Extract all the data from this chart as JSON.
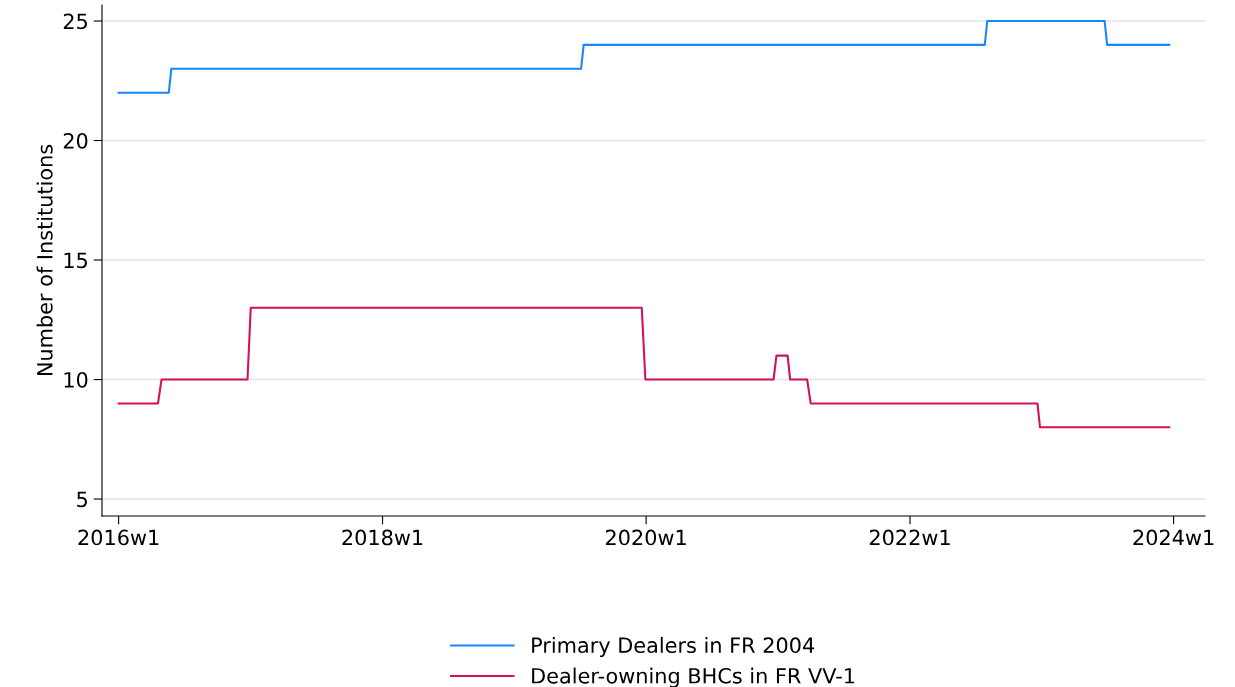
{
  "chart_data": {
    "type": "line",
    "ylabel": "Number of Institutions",
    "xlim": [
      "2015-11-16",
      "2024-03-28"
    ],
    "xticks": [
      {
        "value": "2016-01-01",
        "label": "2016w1"
      },
      {
        "value": "2018-01-01",
        "label": "2018w1"
      },
      {
        "value": "2020-01-01",
        "label": "2020w1"
      },
      {
        "value": "2022-01-01",
        "label": "2022w1"
      },
      {
        "value": "2024-01-01",
        "label": "2024w1"
      }
    ],
    "ylim": [
      4.29,
      25.67
    ],
    "yticks": [
      5,
      10,
      15,
      20,
      25
    ],
    "grid": "y",
    "legend": "bottom",
    "marker": "none",
    "line_style": "solid",
    "series": [
      {
        "name": "Primary Dealers in FR 2004",
        "color": "#1a85ff",
        "x": [
          "2016-01-01",
          "2016-05-19",
          "2016-05-26",
          "2019-07-05",
          "2019-07-12",
          "2022-07-27",
          "2022-08-03",
          "2023-06-24",
          "2023-07-01",
          "2023-12-20"
        ],
        "values": [
          22,
          22,
          23,
          23,
          24,
          24,
          25,
          25,
          24,
          24
        ]
      },
      {
        "name": "Dealer-owning BHCs in FR VV-1",
        "color": "#d41159",
        "x": [
          "2016-01-01",
          "2016-04-19",
          "2016-04-29",
          "2016-12-23",
          "2017-01-01",
          "2019-12-20",
          "2019-12-30",
          "2020-12-19",
          "2020-12-27",
          "2021-01-27",
          "2021-02-03",
          "2021-03-22",
          "2021-04-01",
          "2022-12-20",
          "2022-12-27",
          "2023-12-20"
        ],
        "values": [
          9,
          9,
          10,
          10,
          13,
          13,
          10,
          10,
          11,
          11,
          10,
          10,
          9,
          9,
          8,
          8
        ]
      }
    ]
  }
}
